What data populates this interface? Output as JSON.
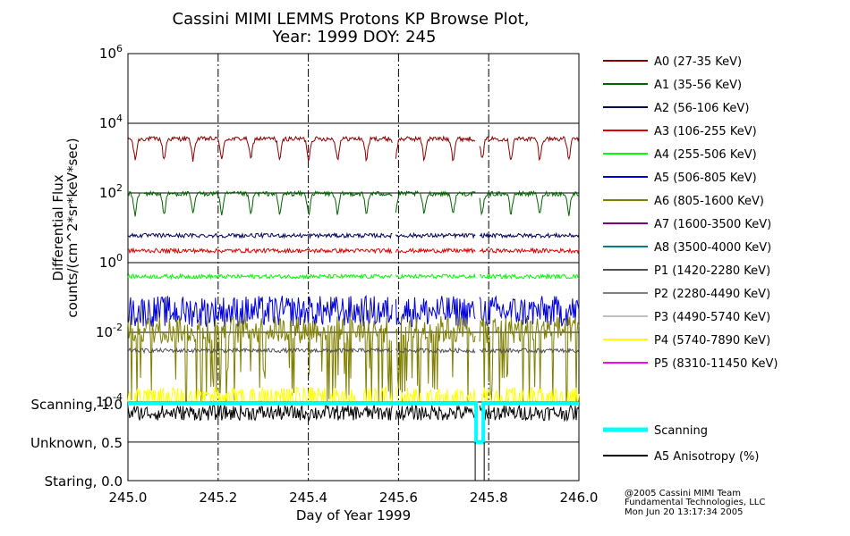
{
  "chart_data": {
    "type": "line",
    "title": "Cassini MIMI LEMMS Protons KP Browse Plot,",
    "subtitle": "Year: 1999 DOY: 245",
    "xlabel": "Day of Year 1999",
    "ylabel_line1": "Differential Flux",
    "ylabel_line2": "counts/(cm^2*sr*keV*sec)",
    "x_range": [
      245.0,
      246.0
    ],
    "x_ticks": [
      "245.0",
      "245.2",
      "245.4",
      "245.6",
      "245.8",
      "246.0"
    ],
    "y_scale": "log",
    "y_range": [
      0.0001,
      1000000
    ],
    "y_tick_bases": [
      "10",
      "10",
      "10",
      "10",
      "10",
      "10"
    ],
    "y_tick_exponents": [
      "-4",
      "-2",
      "0",
      "2",
      "4",
      "6"
    ],
    "lower_panel_ticks": [
      "Scanning, 1.0",
      "Unknown, 0.5",
      "Staring, 0.0"
    ],
    "series": [
      {
        "name": "A0 (27-35 KeV)",
        "color": "#8b0000",
        "typical_value": 3000,
        "variability": "dips"
      },
      {
        "name": "A1 (35-56 KeV)",
        "color": "#006400",
        "typical_value": 80,
        "variability": "dips"
      },
      {
        "name": "A2 (56-106 KeV)",
        "color": "#00005a",
        "typical_value": 6
      },
      {
        "name": "A3 (106-255 KeV)",
        "color": "#e00000",
        "typical_value": 2.2
      },
      {
        "name": "A4 (255-506 KeV)",
        "color": "#00ff00",
        "typical_value": 0.4
      },
      {
        "name": "A5 (506-805 KeV)",
        "color": "#0000dd",
        "typical_value": 0.04,
        "variability": "noisy"
      },
      {
        "name": "A6 (805-1600 KeV)",
        "color": "#808000",
        "typical_value": 0.01,
        "variability": "spiky"
      },
      {
        "name": "A7 (1600-3500 KeV)",
        "color": "#800080"
      },
      {
        "name": "A8 (3500-4000 KeV)",
        "color": "#008080"
      },
      {
        "name": "P1 (1420-2280 KeV)",
        "color": "#505050",
        "typical_value": 0.003
      },
      {
        "name": "P2 (2280-4490 KeV)",
        "color": "#808080"
      },
      {
        "name": "P3 (4490-5740 KeV)",
        "color": "#c0c0c0"
      },
      {
        "name": "P4 (5740-7890 KeV)",
        "color": "#ffff00",
        "typical_value": 0.00015,
        "variability": "sparse"
      },
      {
        "name": "P5 (8310-11450 KeV)",
        "color": "#ff00ff"
      }
    ],
    "lower_series": [
      {
        "name": "Scanning",
        "color": "#00ffff",
        "typical_value": 1.0,
        "dip": {
          "x_start": 245.772,
          "x_end": 245.788,
          "value": 0.5
        }
      },
      {
        "name": "A5 Anisotropy (%)",
        "color": "#000000",
        "typical_value": 0.88,
        "variability": "noisy"
      }
    ],
    "data_gaps": [
      245.59,
      245.775
    ]
  },
  "credits": [
    "@2005 Cassini MIMI Team",
    "Fundamental Technologies, LLC",
    "Mon Jun 20 13:17:34 2005"
  ]
}
